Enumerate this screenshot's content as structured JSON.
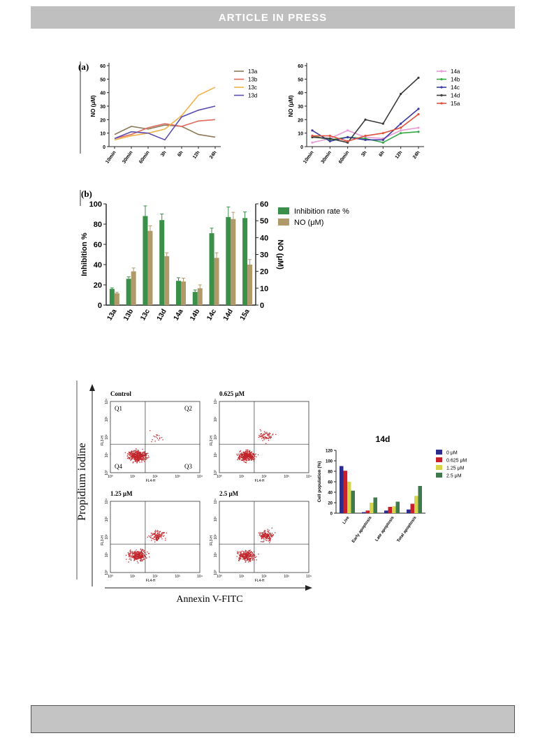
{
  "header": {
    "banner": "ARTICLE IN PRESS"
  },
  "colors": {
    "banner_bg": "#bfbfbf",
    "footer_bg": "#c4c4c4",
    "inhibition": "#3a8f49",
    "no_bar": "#b09a6a",
    "dots": "#c0252a"
  },
  "chart_data": [
    {
      "id": "a-left",
      "type": "line",
      "panel_label": "(a)",
      "ylabel": "NO (μM)",
      "ylim": [
        0,
        60
      ],
      "yticks": [
        0,
        10,
        20,
        30,
        40,
        50,
        60
      ],
      "categories": [
        "10min",
        "30min",
        "60min",
        "3h",
        "6h",
        "12h",
        "24h"
      ],
      "series": [
        {
          "name": "13a",
          "color": "#8c7a5a",
          "marker": "none",
          "values": [
            9,
            15,
            13,
            16,
            15,
            9,
            7
          ]
        },
        {
          "name": "13b",
          "color": "#e06b5c",
          "marker": "none",
          "values": [
            6,
            9,
            14,
            17,
            15,
            19,
            20
          ]
        },
        {
          "name": "13c",
          "color": "#f0b24a",
          "marker": "none",
          "values": [
            5,
            8,
            10,
            13,
            23,
            38,
            44
          ]
        },
        {
          "name": "13d",
          "color": "#5a4db0",
          "marker": "none",
          "values": [
            6,
            11,
            10,
            5,
            22,
            27,
            30
          ]
        }
      ]
    },
    {
      "id": "a-right",
      "type": "line",
      "ylabel": "NO (μM)",
      "ylim": [
        0,
        60
      ],
      "yticks": [
        0,
        10,
        20,
        30,
        40,
        50,
        60
      ],
      "categories": [
        "10min",
        "30min",
        "60min",
        "3h",
        "6h",
        "12h",
        "24h"
      ],
      "series": [
        {
          "name": "14a",
          "color": "#e79ad6",
          "marker": "circle",
          "values": [
            3,
            6,
            12,
            7,
            6,
            12,
            14
          ]
        },
        {
          "name": "14b",
          "color": "#39a84a",
          "marker": "circle",
          "values": [
            8,
            5,
            7,
            6,
            3,
            10,
            11
          ]
        },
        {
          "name": "14c",
          "color": "#3c3aa0",
          "marker": "circle",
          "values": [
            12,
            4,
            7,
            5,
            5,
            17,
            28
          ]
        },
        {
          "name": "14d",
          "color": "#3a3a3a",
          "marker": "circle",
          "values": [
            7,
            6,
            3,
            20,
            17,
            39,
            51
          ]
        },
        {
          "name": "15a",
          "color": "#e0503c",
          "marker": "circle",
          "values": [
            8,
            8,
            4,
            8,
            10,
            14,
            24
          ]
        }
      ]
    },
    {
      "id": "b",
      "type": "bar",
      "panel_label": "(b)",
      "ylabel": "Inhibition %",
      "y2label": "NO (μM)",
      "ylim": [
        0,
        100
      ],
      "yticks": [
        0,
        20,
        40,
        60,
        80,
        100
      ],
      "y2lim": [
        0,
        60
      ],
      "y2ticks": [
        0,
        10,
        20,
        30,
        40,
        50,
        60
      ],
      "categories": [
        "13a",
        "13b",
        "13c",
        "13d",
        "14a",
        "14b",
        "14c",
        "14d",
        "15a"
      ],
      "series": [
        {
          "name": "Inhibition rate %",
          "axis": "left",
          "color": "#3a8f49",
          "values": [
            16,
            26,
            88,
            84,
            24,
            13,
            71,
            87,
            86
          ],
          "errors": [
            1,
            2,
            10,
            6,
            3,
            2,
            5,
            10,
            6
          ]
        },
        {
          "name": "NO (μM)",
          "axis": "right",
          "color": "#b09a6a",
          "values": [
            7,
            20,
            44,
            29,
            14,
            10,
            28,
            51,
            24
          ],
          "errors": [
            0.6,
            2,
            3,
            2,
            2,
            2,
            3,
            4,
            3
          ]
        }
      ],
      "legend": "top-right"
    },
    {
      "id": "c-bars",
      "type": "bar",
      "title": "14d",
      "ylabel": "Cell population (%)",
      "ylim": [
        0,
        120
      ],
      "yticks": [
        0,
        20,
        40,
        60,
        80,
        100,
        120
      ],
      "categories": [
        "Live",
        "Early apoptosis",
        "Late apoptosis",
        "Total apoptosis"
      ],
      "series": [
        {
          "name": "0 μM",
          "color": "#2c2c8c",
          "values": [
            90,
            2,
            5,
            7
          ]
        },
        {
          "name": "0.625 μM",
          "color": "#c8202a",
          "values": [
            81,
            5,
            12,
            18
          ]
        },
        {
          "name": "1.25 μM",
          "color": "#d7d44a",
          "values": [
            60,
            20,
            13,
            33
          ]
        },
        {
          "name": "2.5 μM",
          "color": "#3f7a4f",
          "values": [
            43,
            30,
            22,
            52
          ]
        }
      ],
      "legend": "right"
    }
  ],
  "flow": {
    "yaxis_label": "Propidium iodine",
    "xaxis_label": "Annexin V-FITC",
    "panels": [
      {
        "label": "Control",
        "quadrants": [
          "Q1",
          "Q2",
          "Q4",
          "Q3"
        ],
        "xlabel": "FL4-H",
        "ylabel": "FL3-H"
      },
      {
        "label": "0.625 μM",
        "xlabel": "FL4-H",
        "ylabel": "FL3-H"
      },
      {
        "label": "1.25 μM",
        "xlabel": "FL4-H",
        "ylabel": "FL3-H"
      },
      {
        "label": "2.5 μM",
        "xlabel": "FL4-H",
        "ylabel": "FL3-H"
      }
    ],
    "decade_ticks": [
      "10⁰",
      "10¹",
      "10²",
      "10³",
      "10⁴"
    ]
  }
}
